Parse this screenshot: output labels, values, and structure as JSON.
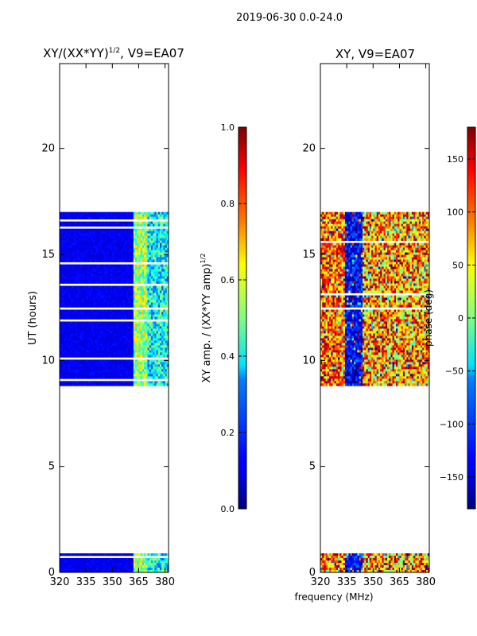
{
  "chart_data": [
    {
      "type": "heatmap",
      "suptitle": "2019-06-30 0.0-24.0",
      "title_main": "XY/(XX*YY)",
      "title_exp": "1/2",
      "title_rest": ", V9=EA07",
      "ylabel": "UT (hours)",
      "xlabel": "",
      "xlim": [
        320,
        382
      ],
      "ylim": [
        0,
        24
      ],
      "xticks": [
        320,
        335,
        350,
        365,
        380
      ],
      "yticks": [
        0,
        5,
        10,
        15,
        20
      ],
      "ytick_labels": [
        "0",
        "5",
        "10",
        "15",
        "20"
      ],
      "data_time_ranges": [
        [
          0,
          0.9
        ],
        [
          8.8,
          17.0
        ]
      ],
      "colorbar": {
        "label_main": "XY amp. / (XX*YY amp)",
        "label_exp": "1/2",
        "range": [
          0.0,
          1.0
        ],
        "ticks": [
          0.0,
          0.2,
          0.4,
          0.6,
          0.8,
          1.0
        ],
        "tick_labels": [
          "0.0",
          "0.2",
          "0.4",
          "0.6",
          "0.8",
          "1.0"
        ]
      },
      "colormap": "jet"
    },
    {
      "type": "heatmap",
      "title": "XY, V9=EA07",
      "xlabel": "frequency (MHz)",
      "xlim": [
        320,
        382
      ],
      "ylim": [
        0,
        24
      ],
      "xticks": [
        320,
        335,
        350,
        365,
        380
      ],
      "yticks": [
        0,
        5,
        10,
        15,
        20
      ],
      "ytick_labels": [
        "0",
        "5",
        "10",
        "15",
        "20"
      ],
      "data_time_ranges": [
        [
          0,
          0.9
        ],
        [
          8.8,
          17.0
        ]
      ],
      "colorbar": {
        "label": "phase (deg)",
        "range": [
          -180,
          180
        ],
        "ticks": [
          -150,
          -100,
          -50,
          0,
          50,
          100,
          150
        ],
        "tick_labels": [
          "−150",
          "−100",
          "−50",
          "0",
          "50",
          "100",
          "150"
        ]
      },
      "colormap": "jet"
    }
  ]
}
